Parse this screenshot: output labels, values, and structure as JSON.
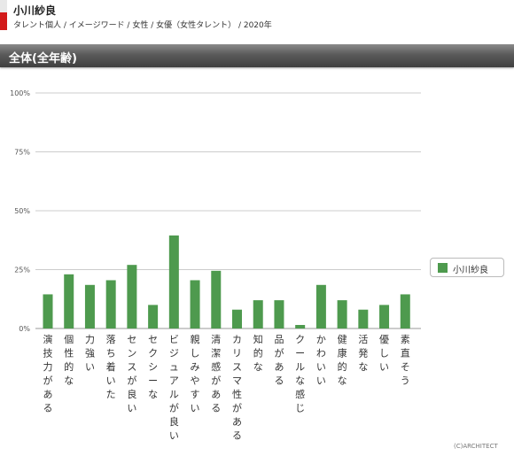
{
  "header": {
    "name": "小川紗良",
    "breadcrumb": "タレント個人 / イメージワード / 女性 / 女優（女性タレント） / 2020年"
  },
  "section": {
    "title": "全体(全年齢)"
  },
  "colors": {
    "bar": "#4e9a4e",
    "grid": "#cccccc",
    "axis": "#999999"
  },
  "chart_data": {
    "type": "bar",
    "categories": [
      "演技力がある",
      "個性的な",
      "力強い",
      "落ち着いた",
      "センスが良い",
      "セクシーな",
      "ビジュアルが良い",
      "親しみやすい",
      "清潔感がある",
      "カリスマ性がある",
      "知的な",
      "品がある",
      "クールな感じ",
      "かわいい",
      "健康的な",
      "活発な",
      "優しい",
      "素直そう"
    ],
    "series": [
      {
        "name": "小川紗良",
        "values": [
          14.5,
          23,
          18.5,
          20.5,
          27,
          10,
          39.5,
          20.5,
          24.5,
          8,
          12,
          12,
          1.5,
          18.5,
          12,
          8,
          10,
          14.5
        ]
      }
    ],
    "yticks": [
      "0%",
      "25%",
      "50%",
      "75%",
      "100%"
    ],
    "ylim": [
      0,
      100
    ],
    "legend": "right",
    "grid": true
  },
  "footer": {
    "copyright": "(C)ARCHITECT"
  }
}
